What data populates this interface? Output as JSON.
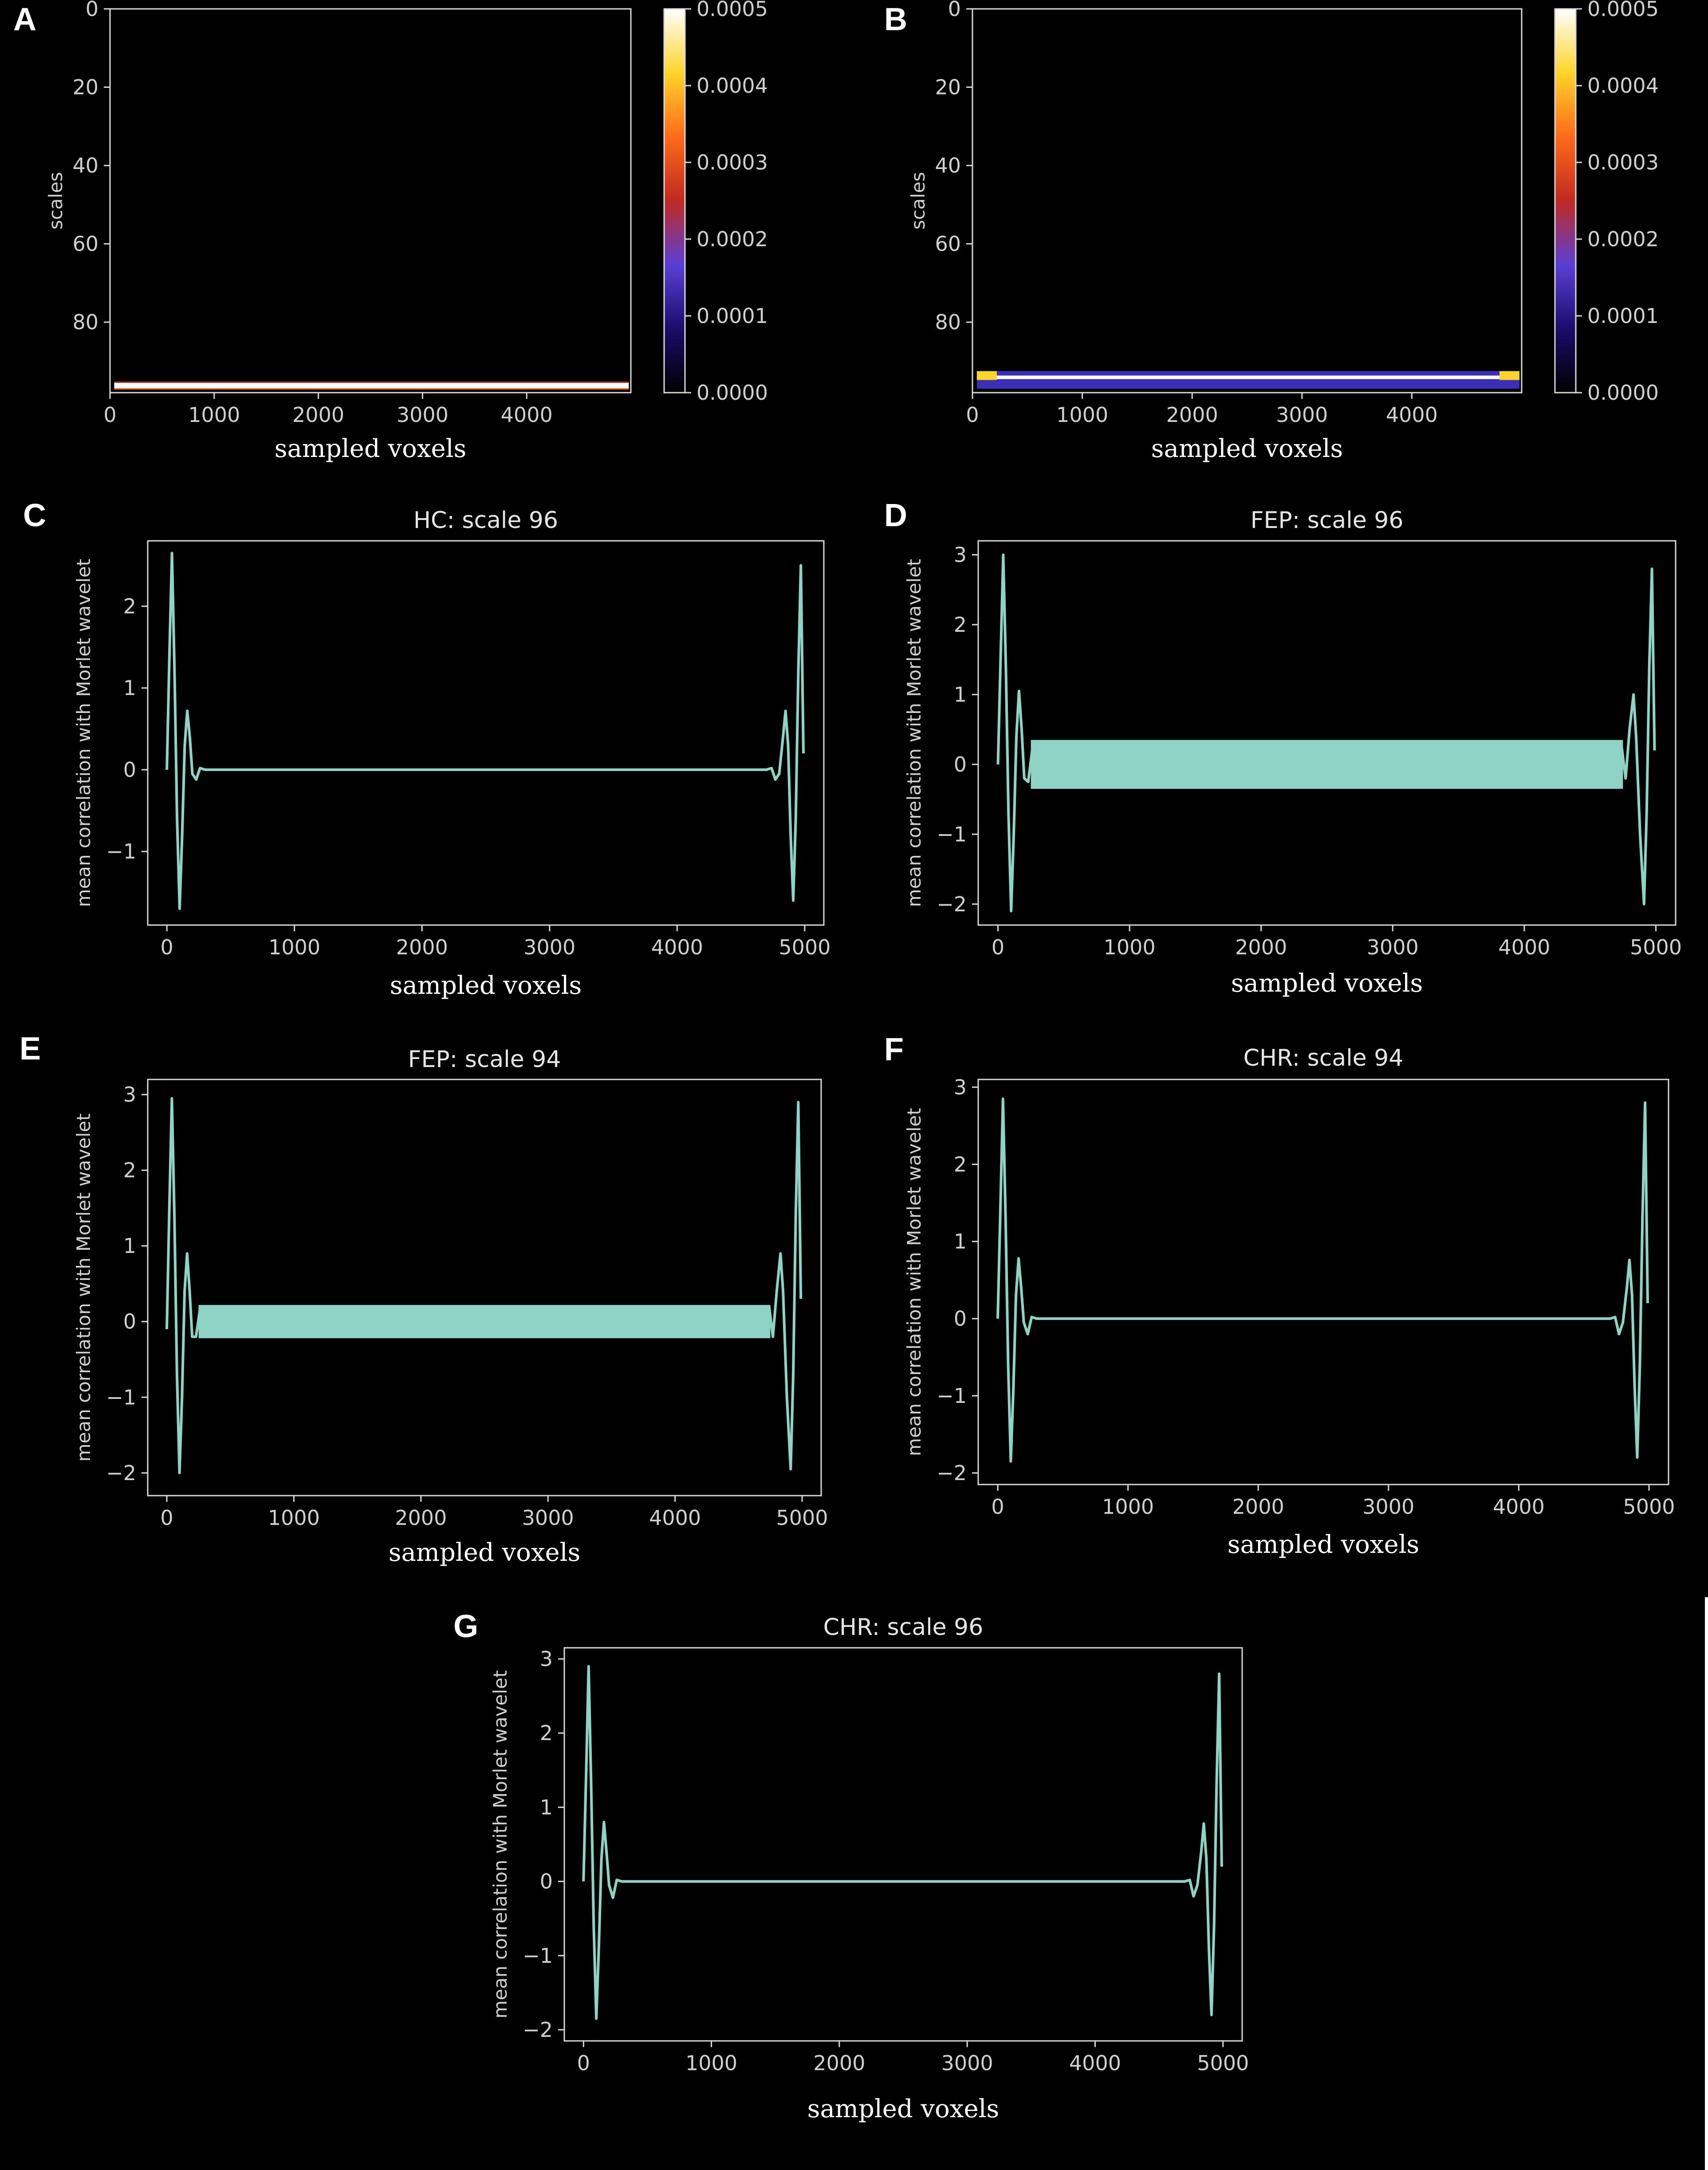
{
  "colors": {
    "background": "#000000",
    "axes": "#d9d9d9",
    "tick_text": "#cfcfcf",
    "line": "#8fd3c5",
    "heat_colormap": [
      "#000000",
      "#1b0c6b",
      "#5a3fd6",
      "#c02a20",
      "#ff6a1a",
      "#ffd42a",
      "#ffffff"
    ]
  },
  "chart_data": [
    {
      "panel": "A",
      "type": "heatmap",
      "title": "",
      "xlabel": "sampled voxels",
      "ylabel": "scales",
      "xlim": [
        0,
        5000
      ],
      "ylim": [
        98,
        0
      ],
      "xticks": [
        "0",
        "1000",
        "2000",
        "3000",
        "4000"
      ],
      "yticks": [
        "0",
        "20",
        "40",
        "60",
        "80"
      ],
      "colorbar": {
        "ticks": [
          "0.0000",
          "0.0001",
          "0.0002",
          "0.0003",
          "0.0004",
          "0.0005"
        ],
        "range": [
          0,
          0.0005
        ]
      },
      "band": {
        "scales": [
          95.5,
          97
        ],
        "x": [
          40,
          4980
        ],
        "value": 0.0005
      }
    },
    {
      "panel": "B",
      "type": "heatmap",
      "title": "",
      "xlabel": "sampled voxels",
      "ylabel": "scales",
      "xlim": [
        0,
        5000
      ],
      "ylim": [
        98,
        0
      ],
      "xticks": [
        "0",
        "1000",
        "2000",
        "3000",
        "4000"
      ],
      "yticks": [
        "0",
        "20",
        "40",
        "60",
        "80"
      ],
      "colorbar": {
        "ticks": [
          "0.0000",
          "0.0001",
          "0.0002",
          "0.0003",
          "0.0004",
          "0.0005"
        ],
        "range": [
          0,
          0.0005
        ]
      },
      "band": {
        "scales": [
          92.5,
          97
        ],
        "x": [
          40,
          4980
        ],
        "value": 8e-05
      }
    },
    {
      "panel": "C",
      "type": "line",
      "title": "HC: scale 96",
      "xlabel": "sampled voxels",
      "ylabel": "mean correlation with Morlet wavelet",
      "xlim": [
        -150,
        5150
      ],
      "ylim": [
        -1.9,
        2.8
      ],
      "xticks": [
        "0",
        "1000",
        "2000",
        "3000",
        "4000",
        "5000"
      ],
      "yticks": [
        "−1",
        "0",
        "1",
        "2"
      ],
      "ytick_values": [
        -1,
        0,
        1,
        2
      ],
      "series": [
        {
          "values": [
            [
              0,
              0
            ],
            [
              20,
              1.4
            ],
            [
              40,
              2.65
            ],
            [
              60,
              1.2
            ],
            [
              80,
              -0.6
            ],
            [
              100,
              -1.7
            ],
            [
              120,
              -0.8
            ],
            [
              140,
              0.3
            ],
            [
              160,
              0.72
            ],
            [
              180,
              0.4
            ],
            [
              200,
              -0.05
            ],
            [
              230,
              -0.12
            ],
            [
              260,
              0.02
            ],
            [
              300,
              0
            ],
            [
              4700,
              0
            ],
            [
              4740,
              0.02
            ],
            [
              4770,
              -0.12
            ],
            [
              4800,
              -0.05
            ],
            [
              4830,
              0.4
            ],
            [
              4850,
              0.72
            ],
            [
              4870,
              0.3
            ],
            [
              4890,
              -0.8
            ],
            [
              4910,
              -1.6
            ],
            [
              4930,
              -0.6
            ],
            [
              4950,
              1.2
            ],
            [
              4970,
              2.5
            ],
            [
              4990,
              0.2
            ]
          ]
        }
      ],
      "noise": null
    },
    {
      "panel": "D",
      "type": "line",
      "title": "FEP: scale 96",
      "xlabel": "sampled voxels",
      "ylabel": "mean correlation with Morlet wavelet",
      "xlim": [
        -150,
        5150
      ],
      "ylim": [
        -2.3,
        3.2
      ],
      "xticks": [
        "0",
        "1000",
        "2000",
        "3000",
        "4000",
        "5000"
      ],
      "yticks": [
        "−2",
        "−1",
        "0",
        "1",
        "2",
        "3"
      ],
      "ytick_values": [
        -2,
        -1,
        0,
        1,
        2,
        3
      ],
      "series": [
        {
          "values": [
            [
              0,
              0
            ],
            [
              20,
              1.5
            ],
            [
              40,
              3.0
            ],
            [
              60,
              1.4
            ],
            [
              80,
              -0.7
            ],
            [
              100,
              -2.1
            ],
            [
              120,
              -1.0
            ],
            [
              140,
              0.4
            ],
            [
              160,
              1.05
            ],
            [
              180,
              0.5
            ],
            [
              200,
              -0.2
            ],
            [
              230,
              -0.25
            ],
            [
              260,
              0.2
            ],
            [
              300,
              0
            ],
            [
              4700,
              0
            ],
            [
              4740,
              0.25
            ],
            [
              4770,
              -0.2
            ],
            [
              4800,
              0.5
            ],
            [
              4830,
              1.0
            ],
            [
              4850,
              0.4
            ],
            [
              4880,
              -1.0
            ],
            [
              4910,
              -2.0
            ],
            [
              4930,
              -0.7
            ],
            [
              4950,
              1.4
            ],
            [
              4970,
              2.8
            ],
            [
              4990,
              0.2
            ]
          ]
        }
      ],
      "noise": {
        "x": [
          250,
          4750
        ],
        "amplitude": 0.35
      }
    },
    {
      "panel": "E",
      "type": "line",
      "title": "FEP: scale 94",
      "xlabel": "sampled voxels",
      "ylabel": "mean correlation with Morlet wavelet",
      "xlim": [
        -150,
        5150
      ],
      "ylim": [
        -2.3,
        3.2
      ],
      "xticks": [
        "0",
        "1000",
        "2000",
        "3000",
        "4000",
        "5000"
      ],
      "yticks": [
        "−2",
        "−1",
        "0",
        "1",
        "2",
        "3"
      ],
      "ytick_values": [
        -2,
        -1,
        0,
        1,
        2,
        3
      ],
      "series": [
        {
          "values": [
            [
              0,
              -0.1
            ],
            [
              20,
              1.5
            ],
            [
              40,
              2.95
            ],
            [
              60,
              1.4
            ],
            [
              80,
              -0.7
            ],
            [
              100,
              -2.0
            ],
            [
              120,
              -1.0
            ],
            [
              140,
              0.4
            ],
            [
              160,
              0.9
            ],
            [
              180,
              0.4
            ],
            [
              200,
              -0.2
            ],
            [
              230,
              -0.2
            ],
            [
              260,
              0.15
            ],
            [
              300,
              0
            ],
            [
              4700,
              0
            ],
            [
              4740,
              0.2
            ],
            [
              4770,
              -0.2
            ],
            [
              4800,
              0.4
            ],
            [
              4830,
              0.9
            ],
            [
              4850,
              0.4
            ],
            [
              4880,
              -1.0
            ],
            [
              4910,
              -1.95
            ],
            [
              4930,
              -0.7
            ],
            [
              4950,
              1.4
            ],
            [
              4970,
              2.9
            ],
            [
              4990,
              0.3
            ]
          ]
        }
      ],
      "noise": {
        "x": [
          250,
          4750
        ],
        "amplitude": 0.22
      }
    },
    {
      "panel": "F",
      "type": "line",
      "title": "CHR: scale 94",
      "xlabel": "sampled voxels",
      "ylabel": "mean correlation with Morlet wavelet",
      "xlim": [
        -150,
        5150
      ],
      "ylim": [
        -2.15,
        3.1
      ],
      "xticks": [
        "0",
        "1000",
        "2000",
        "3000",
        "4000",
        "5000"
      ],
      "yticks": [
        "−2",
        "−1",
        "0",
        "1",
        "2",
        "3"
      ],
      "ytick_values": [
        -2,
        -1,
        0,
        1,
        2,
        3
      ],
      "series": [
        {
          "values": [
            [
              0,
              0
            ],
            [
              20,
              1.4
            ],
            [
              40,
              2.85
            ],
            [
              60,
              1.3
            ],
            [
              80,
              -0.6
            ],
            [
              100,
              -1.85
            ],
            [
              120,
              -0.9
            ],
            [
              140,
              0.3
            ],
            [
              160,
              0.78
            ],
            [
              180,
              0.4
            ],
            [
              200,
              -0.05
            ],
            [
              230,
              -0.2
            ],
            [
              260,
              0.02
            ],
            [
              300,
              0
            ],
            [
              4700,
              0
            ],
            [
              4740,
              0.02
            ],
            [
              4770,
              -0.2
            ],
            [
              4800,
              -0.05
            ],
            [
              4830,
              0.4
            ],
            [
              4850,
              0.76
            ],
            [
              4870,
              0.3
            ],
            [
              4890,
              -0.9
            ],
            [
              4910,
              -1.8
            ],
            [
              4930,
              -0.6
            ],
            [
              4950,
              1.3
            ],
            [
              4970,
              2.8
            ],
            [
              4990,
              0.2
            ]
          ]
        }
      ],
      "noise": null
    },
    {
      "panel": "G",
      "type": "line",
      "title": "CHR: scale 96",
      "xlabel": "sampled voxels",
      "ylabel": "mean correlation with Morlet wavelet",
      "xlim": [
        -150,
        5150
      ],
      "ylim": [
        -2.15,
        3.15
      ],
      "xticks": [
        "0",
        "1000",
        "2000",
        "3000",
        "4000",
        "5000"
      ],
      "yticks": [
        "−2",
        "−1",
        "0",
        "1",
        "2",
        "3"
      ],
      "ytick_values": [
        -2,
        -1,
        0,
        1,
        2,
        3
      ],
      "series": [
        {
          "values": [
            [
              0,
              0
            ],
            [
              20,
              1.4
            ],
            [
              40,
              2.9
            ],
            [
              60,
              1.3
            ],
            [
              80,
              -0.6
            ],
            [
              100,
              -1.85
            ],
            [
              120,
              -0.9
            ],
            [
              140,
              0.3
            ],
            [
              160,
              0.8
            ],
            [
              180,
              0.4
            ],
            [
              200,
              -0.05
            ],
            [
              230,
              -0.22
            ],
            [
              260,
              0.02
            ],
            [
              300,
              0
            ],
            [
              4700,
              0
            ],
            [
              4740,
              0.02
            ],
            [
              4770,
              -0.2
            ],
            [
              4800,
              -0.05
            ],
            [
              4830,
              0.4
            ],
            [
              4850,
              0.78
            ],
            [
              4870,
              0.3
            ],
            [
              4890,
              -0.9
            ],
            [
              4910,
              -1.8
            ],
            [
              4930,
              -0.6
            ],
            [
              4950,
              1.3
            ],
            [
              4970,
              2.8
            ],
            [
              4990,
              0.2
            ]
          ]
        }
      ],
      "noise": null
    }
  ]
}
